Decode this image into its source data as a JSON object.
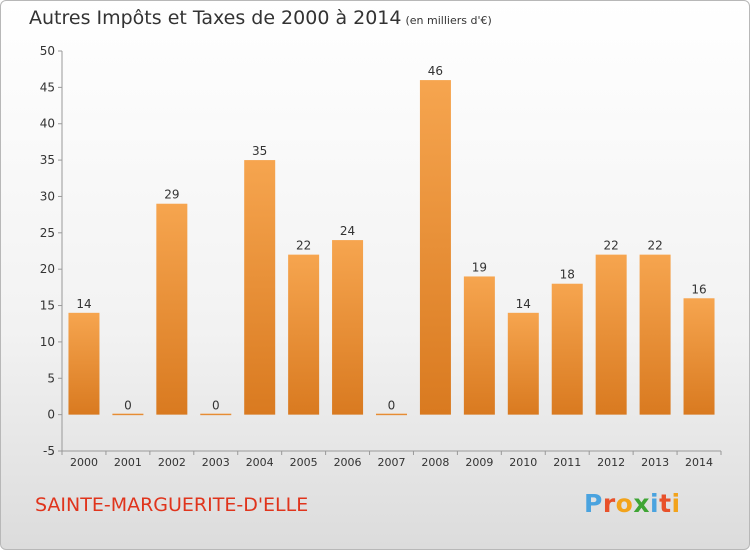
{
  "header": {
    "title": "Autres Impôts et Taxes de 2000 à 2014",
    "unit": "(en milliers d'€)"
  },
  "footer": {
    "commune": "SAINTE-MARGUERITE-D'ELLE",
    "logo_letters": [
      "P",
      "r",
      "o",
      "x",
      "i",
      "t",
      "i"
    ],
    "logo_colors": [
      "#4aa3df",
      "#e8512a",
      "#f2a31b",
      "#3fa535",
      "#4aa3df",
      "#e8512a",
      "#f2a31b"
    ]
  },
  "chart_data": {
    "type": "bar",
    "title": "Autres Impôts et Taxes de 2000 à 2014",
    "subtitle": "(en milliers d'€)",
    "categories": [
      "2000",
      "2001",
      "2002",
      "2003",
      "2004",
      "2005",
      "2006",
      "2007",
      "2008",
      "2009",
      "2010",
      "2011",
      "2012",
      "2013",
      "2014"
    ],
    "values": [
      14,
      0,
      29,
      0,
      35,
      22,
      24,
      0,
      46,
      19,
      14,
      18,
      22,
      22,
      16
    ],
    "ylim": [
      -5,
      50
    ],
    "yticks": [
      -5,
      0,
      5,
      10,
      15,
      20,
      25,
      30,
      35,
      40,
      45,
      50
    ],
    "grid": false,
    "bar_color_top": "#f6a54f",
    "bar_color_bottom": "#d97a20"
  }
}
